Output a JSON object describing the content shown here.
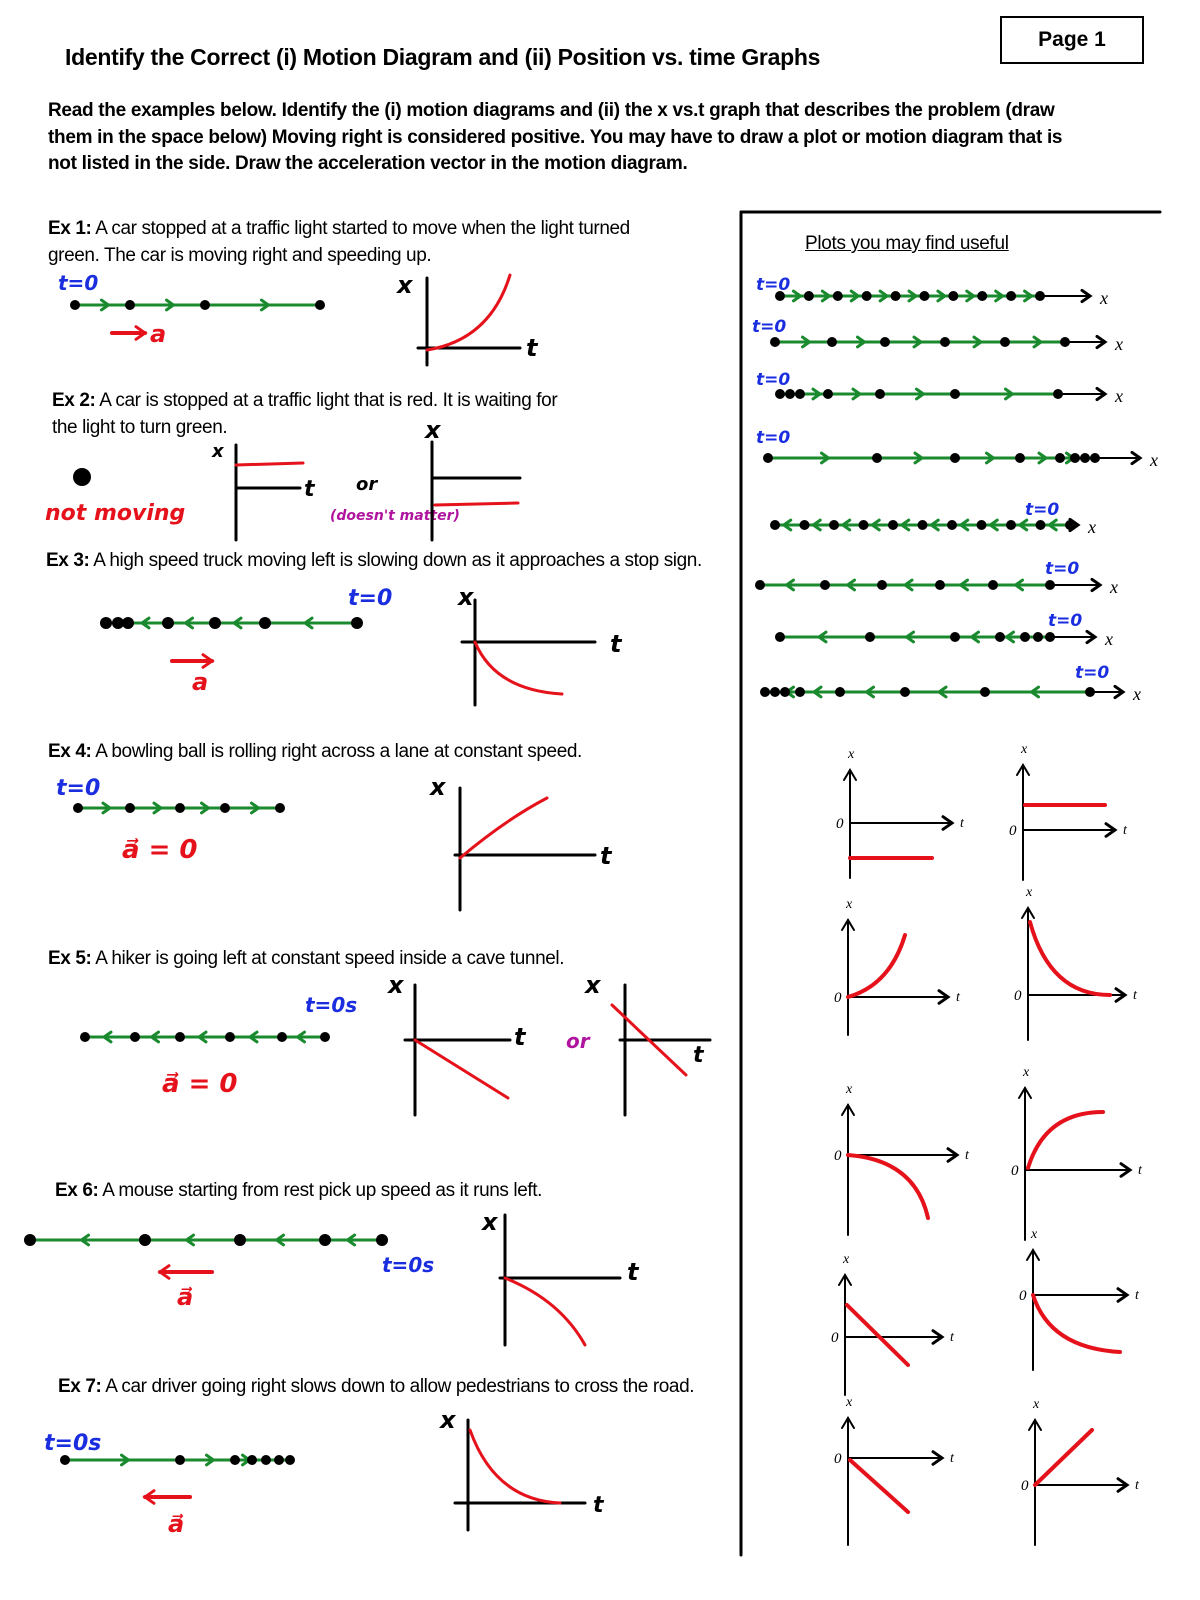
{
  "header": {
    "title": "Identify the Correct (i) Motion Diagram and (ii) Position vs. time Graphs",
    "page_label": "Page 1"
  },
  "instructions": "Read the examples below. Identify the (i) motion diagrams and (ii) the x vs.t graph that describes the problem (draw them in the space below) Moving right is considered positive. You may have to draw a plot or motion diagram that is not listed in the side. Draw the acceleration vector in the motion diagram.",
  "examples": [
    {
      "label": "Ex 1:",
      "text": "A car stopped at a traffic light started to move when the light turned green. The car is moving right and speeding up.",
      "notes": [
        "t=0",
        "a"
      ]
    },
    {
      "label": "Ex 2:",
      "text": "A car is stopped at a traffic light that is red. It is waiting for the light to turn green.",
      "notes": [
        "not moving",
        "or",
        "(doesn't matter)"
      ]
    },
    {
      "label": "Ex 3:",
      "text": "A high speed truck moving left is slowing down as it approaches a stop sign.",
      "notes": [
        "t=0",
        "a"
      ]
    },
    {
      "label": "Ex 4:",
      "text": "A bowling ball is rolling right across a lane at constant speed.",
      "notes": [
        "t=0",
        "a⃗ = 0"
      ]
    },
    {
      "label": "Ex 5:",
      "text": "A hiker is going left at constant speed inside a cave tunnel.",
      "notes": [
        "t=0s",
        "a⃗ = 0",
        "or"
      ]
    },
    {
      "label": "Ex 6:",
      "text": "A mouse starting from rest pick up speed as it runs left.",
      "notes": [
        "t=0s",
        "a⃗"
      ]
    },
    {
      "label": "Ex 7:",
      "text": "A car driver going right slows down to allow pedestrians to cross the road.",
      "notes": [
        "t=0s",
        "a⃗"
      ]
    }
  ],
  "axes": {
    "x": "x",
    "t": "t",
    "origin": "0"
  },
  "side_panel": {
    "title": "Plots you may find useful",
    "t0_label": "t=0"
  },
  "colors": {
    "velocity_arrow": "#1a8a2e",
    "acceleration": "#e5121b",
    "time_label": "#1a2ee0",
    "note_magenta": "#b0149e",
    "curve": "#e5121b"
  }
}
